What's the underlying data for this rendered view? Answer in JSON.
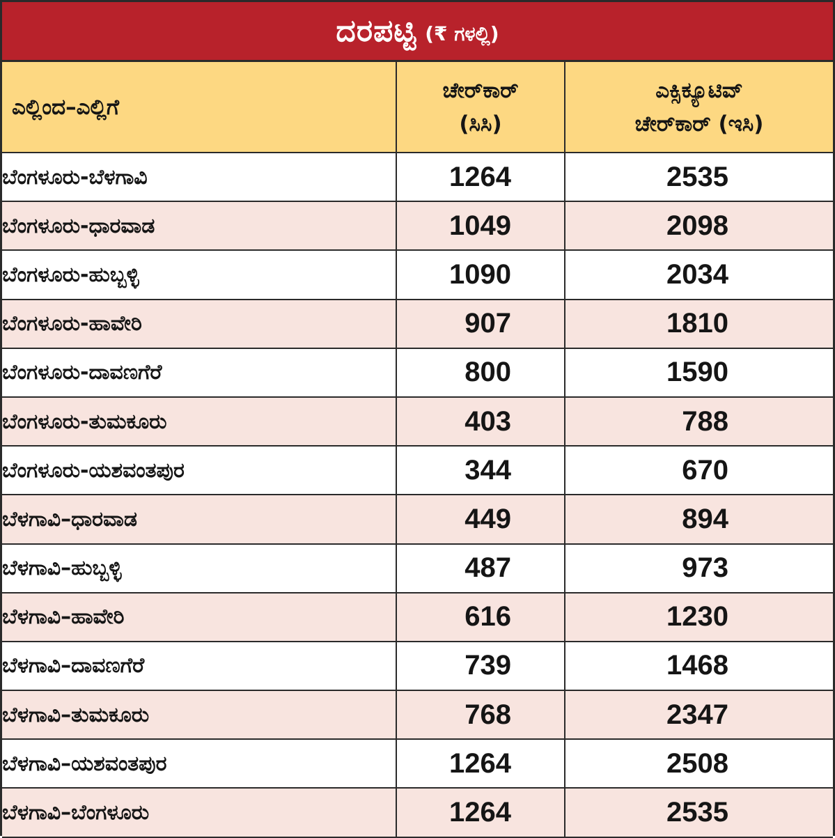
{
  "title": {
    "main": "ದರಪಟ್ಟಿ",
    "sub": "(₹ ಗಳಲ್ಲಿ)"
  },
  "headers": {
    "route": "ಎಲ್ಲಿಂದ–ಎಲ್ಲಿಗೆ",
    "chair_car_line1": "ಚೇರ್‌ಕಾರ್",
    "chair_car_line2": "(ಸಿಸಿ)",
    "exec_chair_car_line1": "ಎಕ್ಸಿಕ್ಯೂಟಿವ್",
    "exec_chair_car_line2": "ಚೇರ್‌ಕಾರ್ (ಇಸಿ)"
  },
  "rows": [
    {
      "route": "ಬೆಂಗಳೂರು-ಬೆಳಗಾವಿ",
      "cc": "1264",
      "ec": "2535"
    },
    {
      "route": "ಬೆಂಗಳೂರು-ಧಾರವಾಡ",
      "cc": "1049",
      "ec": "2098"
    },
    {
      "route": "ಬೆಂಗಳೂರು-ಹುಬ್ಬಳ್ಳಿ",
      "cc": "1090",
      "ec": "2034"
    },
    {
      "route": "ಬೆಂಗಳೂರು-ಹಾವೇರಿ",
      "cc": "907",
      "ec": "1810"
    },
    {
      "route": "ಬೆಂಗಳೂರು-ದಾವಣಗೆರೆ",
      "cc": "800",
      "ec": "1590"
    },
    {
      "route": "ಬೆಂಗಳೂರು-ತುಮಕೂರು",
      "cc": "403",
      "ec": "788"
    },
    {
      "route": "ಬೆಂಗಳೂರು-ಯಶವಂತಪುರ",
      "cc": "344",
      "ec": "670"
    },
    {
      "route": "ಬೆಳಗಾವಿ–ಧಾರವಾಡ",
      "cc": "449",
      "ec": "894"
    },
    {
      "route": "ಬೆಳಗಾವಿ–ಹುಬ್ಬಳ್ಳಿ",
      "cc": "487",
      "ec": "973"
    },
    {
      "route": "ಬೆಳಗಾವಿ–ಹಾವೇರಿ",
      "cc": "616",
      "ec": "1230"
    },
    {
      "route": "ಬೆಳಗಾವಿ–ದಾವಣಗೆರೆ",
      "cc": "739",
      "ec": "1468"
    },
    {
      "route": "ಬೆಳಗಾವಿ–ತುಮಕೂರು",
      "cc": "768",
      "ec": "2347"
    },
    {
      "route": "ಬೆಳಗಾವಿ–ಯಶವಂತಪುರ",
      "cc": "1264",
      "ec": "2508"
    },
    {
      "route": "ಬೆಳಗಾವಿ–ಬೆಂಗಳೂರು",
      "cc": "1264",
      "ec": "2535"
    }
  ],
  "colors": {
    "title_bar": "#b8222b",
    "header_row": "#fdd882",
    "row_alt": "#f8e4df",
    "row_plain": "#ffffff",
    "border": "#2a2a2a"
  }
}
